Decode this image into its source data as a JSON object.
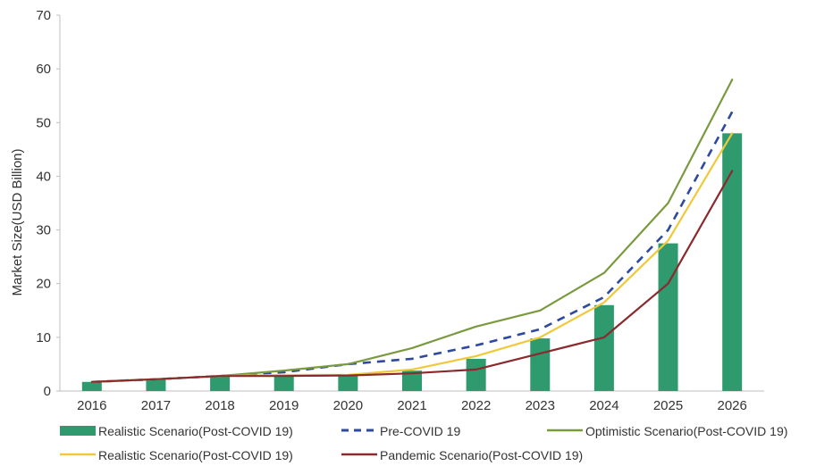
{
  "chart_data": {
    "type": "bar",
    "title": "",
    "xlabel": "",
    "ylabel": "Market Size(USD Billion)",
    "ylim": [
      0,
      70
    ],
    "yticks": [
      0,
      10,
      20,
      30,
      40,
      50,
      60,
      70
    ],
    "grid": false,
    "legend_position": "bottom",
    "categories": [
      "2016",
      "2017",
      "2018",
      "2019",
      "2020",
      "2021",
      "2022",
      "2023",
      "2024",
      "2025",
      "2026"
    ],
    "bars": {
      "name": "Realistic Scenario(Post-COVID 19)",
      "color": "#2e9a6e",
      "values": [
        1.7,
        2.2,
        2.8,
        3.0,
        3.0,
        3.8,
        6.0,
        9.8,
        16.0,
        27.5,
        48.0
      ]
    },
    "series": [
      {
        "name": "Pre-COVID 19",
        "color": "#2e4a9e",
        "dash": true,
        "values": [
          1.7,
          2.2,
          2.8,
          3.5,
          5.0,
          6.0,
          8.5,
          11.5,
          17.5,
          30.0,
          52.0
        ]
      },
      {
        "name": "Optimistic Scenario(Post-COVID 19)",
        "color": "#7a9a3e",
        "dash": false,
        "values": [
          1.7,
          2.2,
          2.8,
          3.8,
          5.0,
          8.0,
          12.0,
          15.0,
          22.0,
          35.0,
          58.0
        ]
      },
      {
        "name": "Realistic Scenario(Post-COVID 19)",
        "color": "#f0c93a",
        "dash": false,
        "values": [
          1.7,
          2.2,
          2.8,
          3.0,
          3.0,
          4.0,
          6.5,
          10.0,
          16.5,
          28.0,
          48.0
        ]
      },
      {
        "name": "Pandemic Scenario(Post-COVID 19)",
        "color": "#8a2a2e",
        "dash": false,
        "values": [
          1.7,
          2.2,
          2.8,
          2.8,
          2.9,
          3.3,
          4.0,
          7.0,
          10.0,
          20.0,
          41.0
        ]
      }
    ]
  }
}
